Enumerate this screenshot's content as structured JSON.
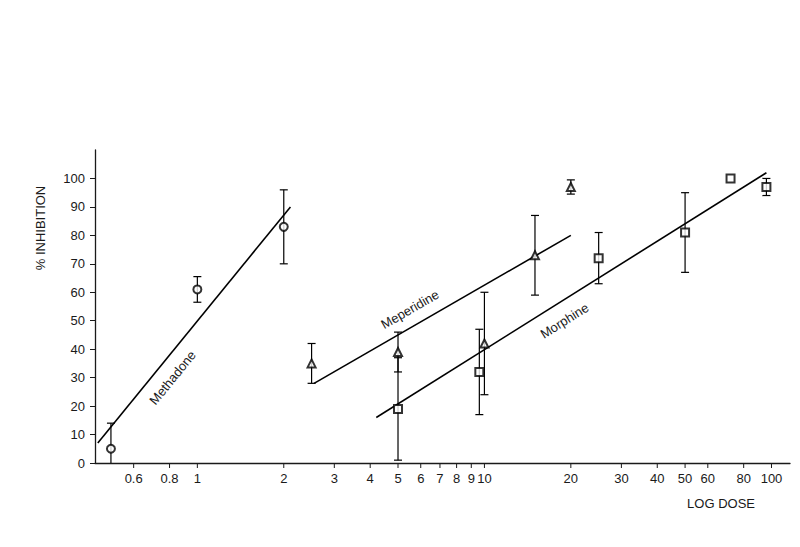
{
  "chart_data": {
    "type": "scatter",
    "xlabel": "LOG DOSE",
    "ylabel": "% INHIBITION",
    "log": "x",
    "grid": false,
    "xlim": [
      0.44,
      116
    ],
    "xticks": [
      0.6,
      0.8,
      1,
      2,
      3,
      4,
      5,
      6,
      7,
      8,
      9,
      10,
      20,
      30,
      40,
      50,
      60,
      80,
      100
    ],
    "ylim": [
      0,
      110
    ],
    "yticks": [
      0,
      10,
      20,
      30,
      40,
      50,
      60,
      70,
      80,
      90,
      100
    ],
    "series": [
      {
        "name": "Methadone",
        "type": "scatter",
        "marker": "circle",
        "color": "#000000",
        "x": [
          0.5,
          1,
          2
        ],
        "values": [
          5,
          61,
          83
        ],
        "errors": [
          9,
          4.5,
          13
        ]
      },
      {
        "name": "Meperidine",
        "type": "scatter",
        "marker": "triangle",
        "color": "#000000",
        "x": [
          2.5,
          5,
          10,
          15,
          20
        ],
        "values": [
          35,
          39,
          42,
          73,
          97
        ],
        "errors": [
          7,
          7,
          18,
          14,
          2.5
        ]
      },
      {
        "name": "Morphine",
        "type": "scatter",
        "marker": "square",
        "color": "#000000",
        "x": [
          5,
          9.6,
          25,
          50,
          72,
          96
        ],
        "values": [
          19,
          32,
          72,
          81,
          100,
          97
        ],
        "errors": [
          18,
          15,
          9,
          14,
          null,
          3
        ]
      },
      {
        "name": "Methadone",
        "type": "line",
        "line_style": "solid",
        "color": "#000000",
        "x": [
          0.45,
          2.11
        ],
        "values": [
          7,
          90
        ]
      },
      {
        "name": "Meperidine",
        "type": "line",
        "line_style": "solid",
        "color": "#000000",
        "x": [
          2.55,
          20
        ],
        "values": [
          28,
          80
        ]
      },
      {
        "name": "Morphine",
        "type": "line",
        "line_style": "solid",
        "color": "#000000",
        "x": [
          4.2,
          96
        ],
        "values": [
          16,
          102
        ]
      }
    ],
    "annotations": [
      {
        "text": "Methadone",
        "x": 0.82,
        "y": 30
      },
      {
        "text": "Meperidine",
        "x": 5.5,
        "y": 54
      },
      {
        "text": "Morphine",
        "x": 19,
        "y": 50
      }
    ]
  }
}
